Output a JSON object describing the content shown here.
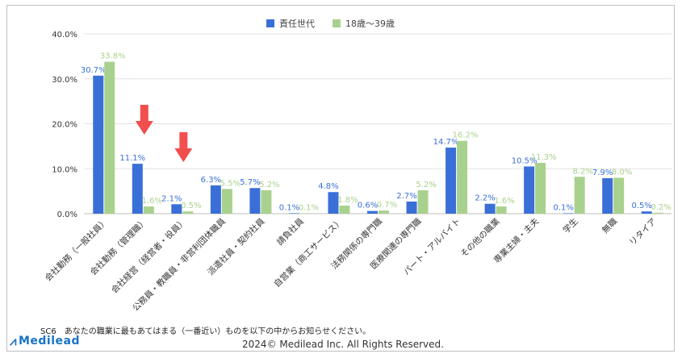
{
  "chart_data": {
    "type": "bar",
    "categories": [
      "会社勤務（一般社員）",
      "会社勤務（管理職）",
      "会社経営（経営者・役員）",
      "公務員・教職員・非営利団体職員",
      "派遣社員・契約社員",
      "請負社員",
      "自営業（商工サービス）",
      "法務関係の専門職",
      "医療関連の専門職",
      "パート・アルバイト",
      "その他の職業",
      "専業主婦・主夫",
      "学生",
      "無職",
      "リタイア"
    ],
    "series": [
      {
        "name": "責任世代",
        "color": "#3a6fd8",
        "label_color": "#3a6fd8",
        "values": [
          30.7,
          11.1,
          2.1,
          6.3,
          5.7,
          0.1,
          4.8,
          0.6,
          2.7,
          14.7,
          2.2,
          10.5,
          0.1,
          7.9,
          0.5
        ]
      },
      {
        "name": "18歳〜39歳",
        "color": "#a9d18e",
        "label_color": "#a9d18e",
        "values": [
          33.8,
          1.6,
          0.5,
          5.5,
          5.2,
          0.1,
          1.8,
          0.7,
          5.2,
          16.2,
          1.6,
          11.3,
          8.2,
          8.0,
          0.2
        ]
      }
    ],
    "yticks": [
      "0.0%",
      "10.0%",
      "20.0%",
      "30.0%",
      "40.0%"
    ],
    "ylim": [
      0,
      40
    ],
    "grid": true,
    "legend": "top-center",
    "annotations": [
      {
        "type": "arrow",
        "color": "#f24e4e",
        "target": "会社勤務（管理職）"
      },
      {
        "type": "arrow",
        "color": "#f24e4e",
        "target": "会社経営（経営者・役員）"
      }
    ]
  },
  "footer": {
    "note": "SC6　あなたの職業に最もあてはまる（一番近い）ものを以下の中からお知らせください。",
    "logo": "Medilead",
    "copyright": "2024© Medilead Inc. All Rights Reserved."
  }
}
